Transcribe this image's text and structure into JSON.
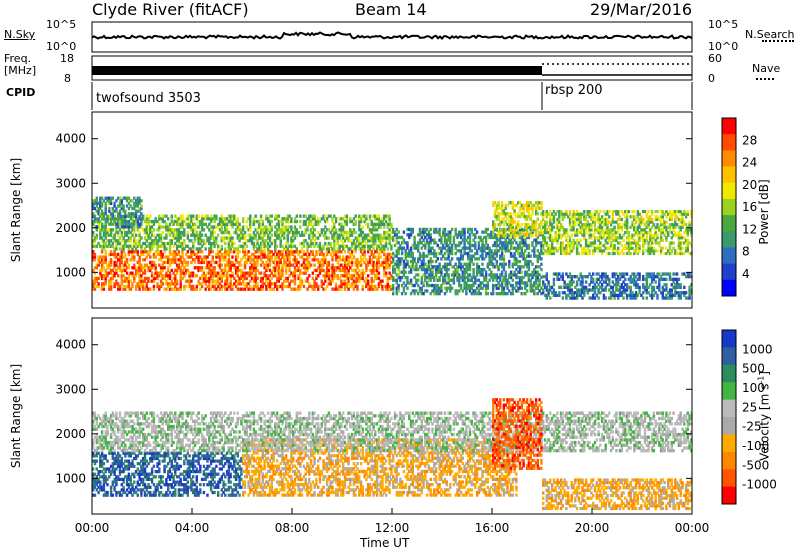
{
  "header": {
    "station": "Clyde River (fitACF)",
    "beam": "Beam 14",
    "date": "29/Mar/2016"
  },
  "noise_panel": {
    "left_label": "N.Sky",
    "right_label": "N.Search",
    "left_ticks": [
      "10^5",
      "10^0"
    ],
    "right_ticks": [
      "10^5",
      "10^0"
    ]
  },
  "freq_panel": {
    "left_label_1": "Freq.",
    "left_label_2": "[MHz]",
    "right_label": "Nave",
    "left_ticks": [
      "18",
      "8"
    ],
    "right_ticks": [
      "60",
      "0"
    ]
  },
  "cpid_panel": {
    "label": "CPID",
    "segments": [
      {
        "name": "twofsound 3503",
        "start_hour": 0
      },
      {
        "name": "rbsp 200",
        "start_hour": 18
      }
    ]
  },
  "colors": {
    "power": [
      "#0000ff",
      "#2040c8",
      "#2e6ec0",
      "#3a9a6a",
      "#4aa840",
      "#9ad21e",
      "#f0e800",
      "#ffc000",
      "#ff8c00",
      "#ff4a00",
      "#ff0000"
    ],
    "velocity": [
      "#1838c8",
      "#2e5fa0",
      "#2a8c60",
      "#44b444",
      "#bbbbbb",
      "#aaaaaa",
      "#ffaa00",
      "#ff8800",
      "#ff5500",
      "#ff0000"
    ]
  },
  "chart_data": [
    {
      "type": "heatmap",
      "quantity": "power",
      "ylabel": "Slant Range [km]",
      "xlabel": "",
      "xlim": [
        0,
        24
      ],
      "ylim": [
        200,
        4600
      ],
      "yticks": [
        "1000",
        "2000",
        "3000",
        "4000"
      ],
      "colorbar_label": "Power [dB]",
      "colorbar_ticks": [
        "4",
        "8",
        "12",
        "16",
        "20",
        "24",
        "28"
      ],
      "colorbar_range": [
        0,
        32
      ],
      "bands": [
        {
          "t0": 0,
          "t1": 12,
          "r0": 600,
          "r1": 1500,
          "level": 26
        },
        {
          "t0": 0,
          "t1": 12,
          "r0": 1500,
          "r1": 2300,
          "level": 14
        },
        {
          "t0": 0,
          "t1": 2,
          "r0": 2000,
          "r1": 2700,
          "level": 10
        },
        {
          "t0": 12,
          "t1": 18,
          "r0": 500,
          "r1": 2000,
          "level": 10
        },
        {
          "t0": 16,
          "t1": 18,
          "r0": 1800,
          "r1": 2600,
          "level": 18
        },
        {
          "t0": 18,
          "t1": 24,
          "r0": 1400,
          "r1": 2400,
          "level": 16
        },
        {
          "t0": 18,
          "t1": 24,
          "r0": 400,
          "r1": 1000,
          "level": 8
        }
      ]
    },
    {
      "type": "heatmap",
      "quantity": "velocity",
      "ylabel": "Slant Range [km]",
      "xlabel": "Time UT",
      "xlim": [
        0,
        24
      ],
      "ylim": [
        200,
        4600
      ],
      "xticks": [
        "00:00",
        "04:00",
        "08:00",
        "12:00",
        "16:00",
        "20:00",
        "00:00"
      ],
      "yticks": [
        "1000",
        "2000",
        "3000",
        "4000"
      ],
      "colorbar_label": "Velocity [m s",
      "colorbar_label_sup": "-1",
      "colorbar_label_end": "]",
      "colorbar_ticks": [
        "1000",
        "500",
        "100",
        "25",
        "-25",
        "-100",
        "-500",
        "-1000"
      ],
      "bands": [
        {
          "t0": 0,
          "t1": 6,
          "r0": 600,
          "r1": 1600,
          "level": 1
        },
        {
          "t0": 6,
          "t1": 17,
          "r0": 600,
          "r1": 1900,
          "level": 6
        },
        {
          "t0": 0,
          "t1": 24,
          "r0": 1600,
          "r1": 2500,
          "level": 4
        },
        {
          "t0": 16,
          "t1": 18,
          "r0": 1200,
          "r1": 2800,
          "level": 8
        },
        {
          "t0": 18,
          "t1": 24,
          "r0": 300,
          "r1": 1000,
          "level": 6
        }
      ]
    }
  ]
}
